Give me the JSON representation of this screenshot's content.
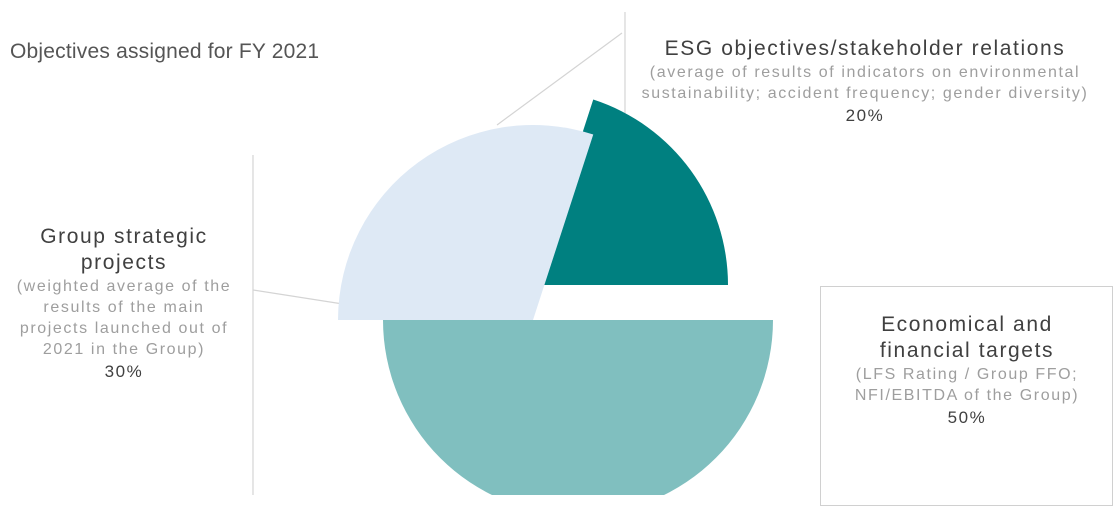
{
  "title": "Objectives assigned for FY 2021",
  "chart_data": {
    "type": "pie",
    "title": "Objectives assigned for FY 2021",
    "slices": [
      {
        "title": "ESG objectives/stakeholder relations",
        "description": "(average of results of indicators on environmental sustainability; accident frequency; gender diversity)",
        "value": 20,
        "value_label": "20%",
        "color": "#008080"
      },
      {
        "title": "Economical and financial targets",
        "description": "(LFS Rating / Group FFO; NFI/EBITDA of the Group)",
        "value": 50,
        "value_label": "50%",
        "color": "#80bfbf"
      },
      {
        "title": "Group strategic projects",
        "description": "(weighted average of the results of the main projects launched out of 2021 in the Group)",
        "value": 30,
        "value_label": "30%",
        "color": "#dee9f5"
      }
    ]
  }
}
